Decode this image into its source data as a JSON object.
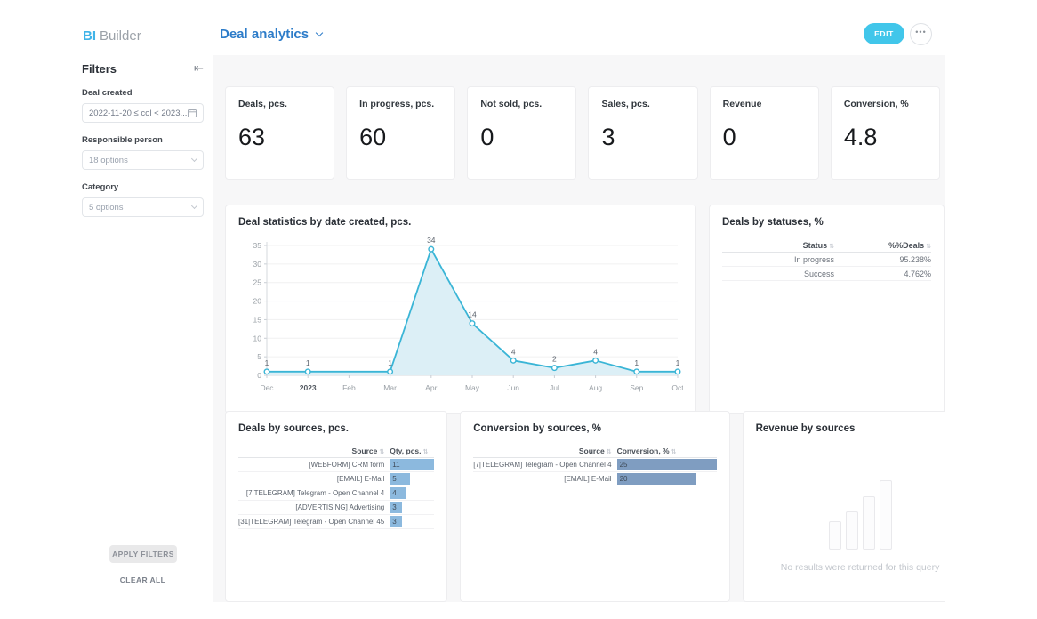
{
  "brand": {
    "bi": "BI",
    "builder": "Builder"
  },
  "header": {
    "title": "Deal analytics",
    "edit_label": "EDIT",
    "more_label": "•••"
  },
  "sidebar": {
    "title": "Filters",
    "collapse_icon": "⇤",
    "filters": [
      {
        "label": "Deal created",
        "value": "2022-11-20 ≤ col < 2023...",
        "type": "date"
      },
      {
        "label": "Responsible person",
        "value": "18 options",
        "type": "select"
      },
      {
        "label": "Category",
        "value": "5 options",
        "type": "select"
      }
    ],
    "apply_label": "APPLY FILTERS",
    "clear_label": "CLEAR ALL"
  },
  "kpis": [
    {
      "label": "Deals, pcs.",
      "value": "63"
    },
    {
      "label": "In progress, pcs.",
      "value": "60"
    },
    {
      "label": "Not sold, pcs.",
      "value": "0"
    },
    {
      "label": "Sales, pcs.",
      "value": "3"
    },
    {
      "label": "Revenue",
      "value": "0"
    },
    {
      "label": "Conversion, %",
      "value": "4.8"
    }
  ],
  "chart_data": [
    {
      "type": "area",
      "title": "Deal statistics by date created, pcs.",
      "x": [
        "Dec",
        "2023",
        "Feb",
        "Mar",
        "Apr",
        "May",
        "Jun",
        "Jul",
        "Aug",
        "Sep",
        "Oct"
      ],
      "x_emphasis": [
        "2023"
      ],
      "values": [
        1,
        1,
        null,
        1,
        34,
        14,
        4,
        2,
        4,
        1,
        1
      ],
      "ylim": [
        0,
        35
      ],
      "yticks": [
        0,
        5,
        10,
        15,
        20,
        25,
        30,
        35
      ],
      "line_color": "#3ab5d6",
      "fill_color": "#dceff6",
      "grid": true
    },
    {
      "type": "table",
      "title": "Deals by statuses, %",
      "columns": [
        "Status",
        "%%Deals"
      ],
      "rows": [
        [
          "In progress",
          "95.238%"
        ],
        [
          "Success",
          "4.762%"
        ]
      ]
    },
    {
      "type": "bar",
      "title": "Deals by sources, pcs.",
      "columns": [
        "Source",
        "Qty, pcs."
      ],
      "categories": [
        "[WEBFORM] CRM form",
        "[EMAIL] E-Mail",
        "[7|TELEGRAM] Telegram - Open Channel 4",
        "[ADVERTISING] Advertising",
        "[31|TELEGRAM] Telegram - Open Channel 45"
      ],
      "values": [
        11,
        5,
        4,
        3,
        3
      ],
      "bar_color": "#8cb9de"
    },
    {
      "type": "bar",
      "title": "Conversion by sources, %",
      "columns": [
        "Source",
        "Conversion, %"
      ],
      "categories": [
        "[7|TELEGRAM] Telegram - Open Channel 4",
        "[EMAIL] E-Mail"
      ],
      "values": [
        25,
        20
      ],
      "bar_color": "#7f9dc1"
    },
    {
      "type": "bar",
      "title": "Revenue by sources",
      "categories": [],
      "values": [],
      "empty_message": "No results were returned for this query"
    }
  ]
}
